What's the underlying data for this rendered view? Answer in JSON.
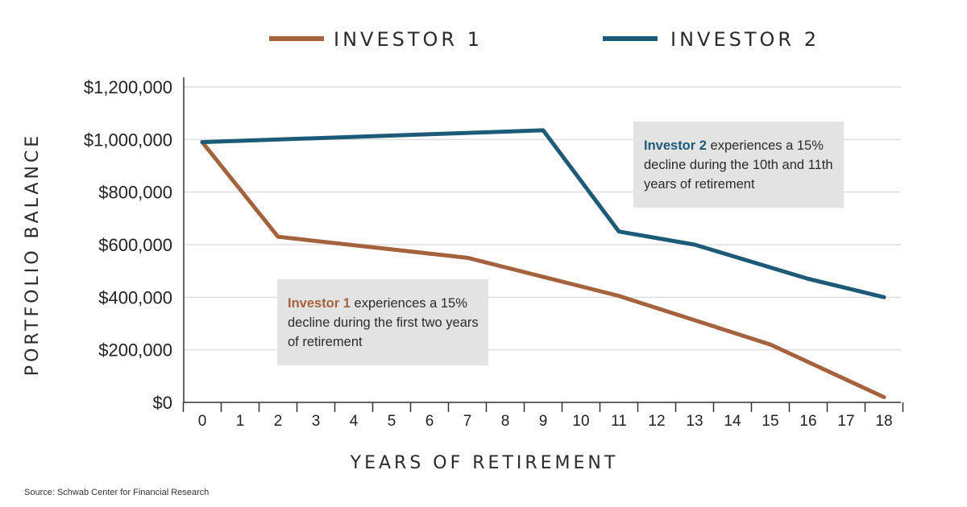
{
  "chart_data": {
    "type": "line",
    "categories": [
      "0",
      "1",
      "2",
      "3",
      "4",
      "5",
      "6",
      "7",
      "8",
      "9",
      "10",
      "11",
      "12",
      "13",
      "14",
      "15",
      "16",
      "17",
      "18"
    ],
    "series": [
      {
        "name": "INVESTOR 1",
        "color": "#a5623e",
        "points": [
          [
            0,
            990000
          ],
          [
            2,
            630000
          ],
          [
            7,
            550000
          ],
          [
            11,
            405000
          ],
          [
            15,
            220000
          ],
          [
            18,
            20000
          ]
        ]
      },
      {
        "name": "INVESTOR 2",
        "color": "#1d5a78",
        "points": [
          [
            0,
            990000
          ],
          [
            9,
            1035000
          ],
          [
            11,
            650000
          ],
          [
            13,
            600000
          ],
          [
            16,
            470000
          ],
          [
            18,
            400000
          ]
        ]
      }
    ],
    "y_ticks": [
      "$0",
      "$200,000",
      "$400,000",
      "$600,000",
      "$800,000",
      "$1,000,000",
      "$1,200,000"
    ],
    "y_tick_values": [
      0,
      200000,
      400000,
      600000,
      800000,
      1000000,
      1200000
    ],
    "ylim": [
      0,
      1200000
    ],
    "ylabel": "PORTFOLIO BALANCE",
    "xlabel": "YEARS OF RETIREMENT",
    "grid": "horizontal",
    "legend_position": "top-center"
  },
  "annotations": {
    "investor1": {
      "highlight": "Investor 1",
      "text": " experiences a 15% decline during the first two years of retirement",
      "color": "#a5623e"
    },
    "investor2": {
      "highlight": "Investor 2",
      "text": " experiences a 15% decline during the 10th and 11th years of retirement",
      "color": "#1d5a78"
    }
  },
  "source": "Source: Schwab Center for Financial Research"
}
